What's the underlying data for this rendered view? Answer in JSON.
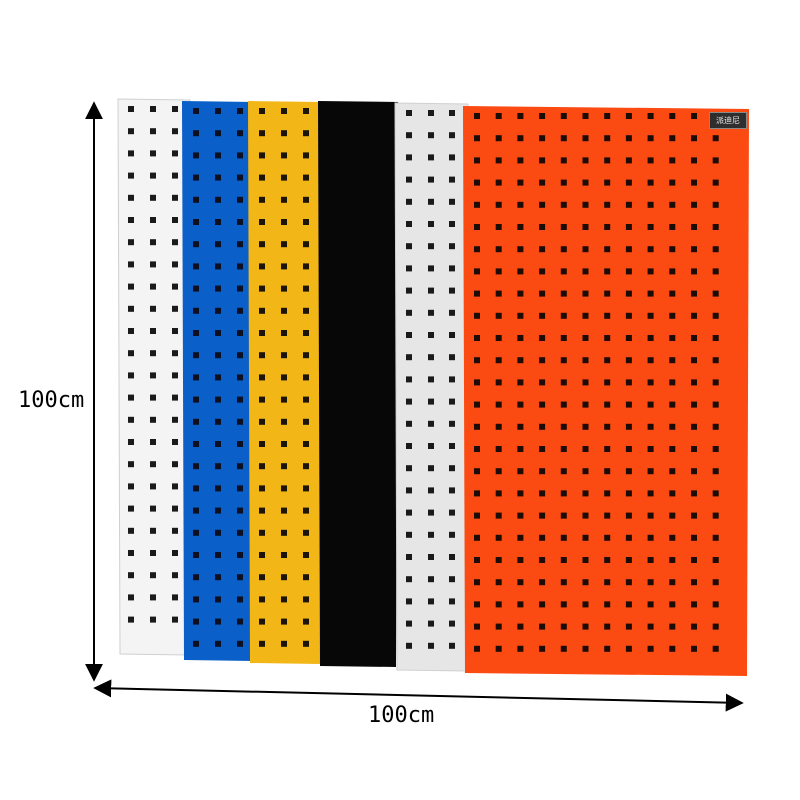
{
  "dimensions": {
    "height_label": "100cm",
    "width_label": "100cm"
  },
  "brand_tag": {
    "text": "派迪尼"
  },
  "panels": [
    {
      "name": "white-panel",
      "color": "#f4f4f4",
      "hole_color": "#1a1a1a"
    },
    {
      "name": "blue-panel",
      "color": "#0a5fc8",
      "hole_color": "#0c1020"
    },
    {
      "name": "yellow-panel",
      "color": "#f2b617",
      "hole_color": "#1c1406"
    },
    {
      "name": "black-panel",
      "color": "#070707",
      "hole_color": "#070707"
    },
    {
      "name": "light-gray-panel",
      "color": "#e6e6e6",
      "hole_color": "#1a1a1a"
    },
    {
      "name": "orange-panel",
      "color": "#fb4a12",
      "hole_color": "#1d0c06"
    }
  ],
  "colors": {
    "arrow": "#000000",
    "background": "#ffffff"
  }
}
